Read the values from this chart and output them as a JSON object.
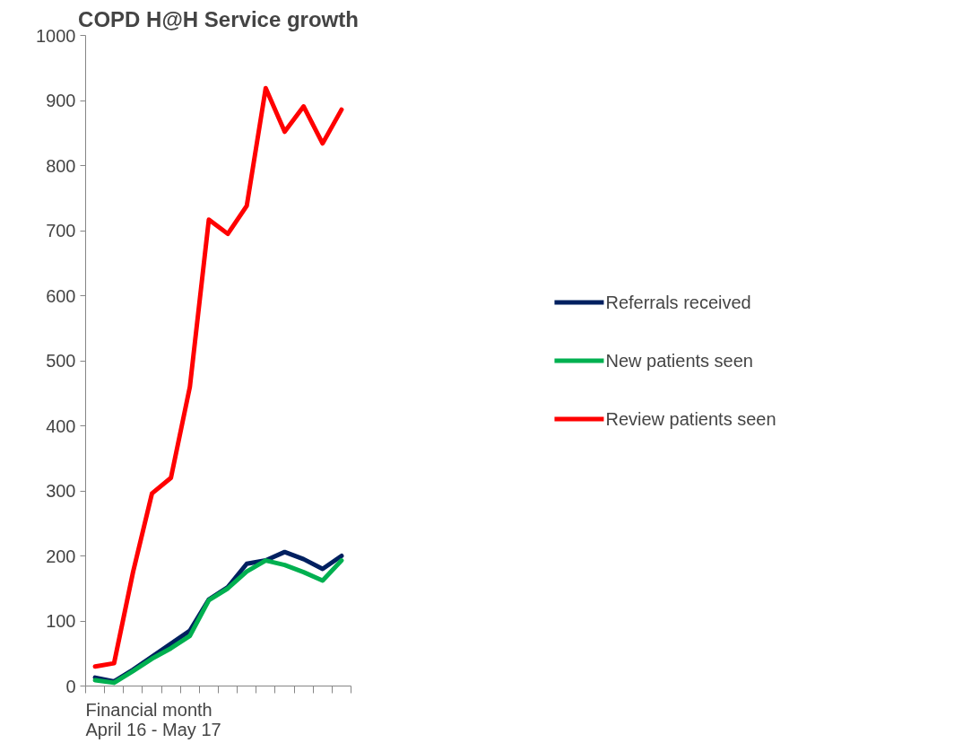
{
  "chart_data": {
    "type": "line",
    "title": "COPD H@H Service growth",
    "xlabel": "Financial month\nApril 16 - May 17",
    "categories": [
      null,
      null,
      null,
      null,
      null,
      null,
      null,
      null,
      null,
      null,
      null,
      null,
      null,
      null
    ],
    "series": [
      {
        "name": "Referrals received",
        "color": "#002060",
        "values": [
          13,
          7,
          25,
          45,
          65,
          85,
          133,
          152,
          188,
          193,
          206,
          195,
          180,
          200
        ]
      },
      {
        "name": "New patients seen",
        "color": "#00b050",
        "values": [
          9,
          5,
          23,
          42,
          58,
          77,
          132,
          150,
          176,
          193,
          186,
          175,
          162,
          193
        ]
      },
      {
        "name": "Review patients seen",
        "color": "#ff0000",
        "values": [
          30,
          35,
          175,
          296,
          320,
          460,
          717,
          695,
          738,
          919,
          852,
          891,
          834,
          886
        ]
      }
    ],
    "ylim": [
      0,
      1000
    ],
    "yticks": [
      0,
      100,
      200,
      300,
      400,
      500,
      600,
      700,
      800,
      900,
      1000
    ],
    "grid": false,
    "legend": "right",
    "line_style": "solid",
    "marker": "none"
  }
}
